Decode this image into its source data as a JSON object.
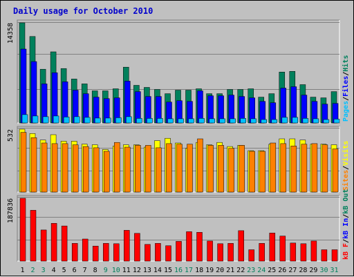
{
  "colors": {
    "background": "#c0c0c0",
    "plot_background": "#c0c0c0",
    "title": "#0000cc",
    "hits": "#00805c",
    "files": "#0000ff",
    "pages": "#00c0ff",
    "visits": "#ffff00",
    "sites": "#ff8000",
    "kbin": "#0000ff",
    "kbf": "#ff0000",
    "weekend_label": "#00805c",
    "weekday_label": "#000000"
  },
  "chart_data": {
    "type": "bar",
    "title": "Daily usage for October 2010",
    "categories": [
      "1",
      "2",
      "3",
      "4",
      "5",
      "6",
      "7",
      "8",
      "9",
      "10",
      "11",
      "12",
      "13",
      "14",
      "15",
      "16",
      "17",
      "18",
      "19",
      "20",
      "21",
      "22",
      "23",
      "24",
      "25",
      "26",
      "27",
      "28",
      "29",
      "30",
      "31"
    ],
    "weekend_days": [
      "2",
      "3",
      "9",
      "10",
      "16",
      "17",
      "23",
      "24",
      "30",
      "31"
    ],
    "grid": true,
    "panels": [
      {
        "name": "hits-files-pages",
        "ymax_label": "14358",
        "ylim": [
          0,
          14358
        ],
        "legend": [
          {
            "text": "Pages",
            "color_key": "pages"
          },
          {
            "text": "Files",
            "color_key": "files"
          },
          {
            "text": "Hits",
            "color_key": "hits"
          }
        ],
        "series": [
          {
            "name": "Hits",
            "color_key": "hits",
            "values": [
              14358,
              12400,
              7700,
              10200,
              7800,
              6300,
              5600,
              4600,
              4600,
              4900,
              8000,
              5400,
              5100,
              4800,
              4200,
              4700,
              4700,
              4900,
              4200,
              4200,
              4800,
              4800,
              4900,
              3700,
              4200,
              7300,
              7400,
              5500,
              3700,
              3600,
              4500
            ]
          },
          {
            "name": "Files",
            "color_key": "files",
            "values": [
              10600,
              8800,
              5600,
              7200,
              5900,
              4700,
              4200,
              3700,
              3500,
              3600,
              6000,
              4500,
              3800,
              3800,
              3000,
              3200,
              3100,
              4600,
              3900,
              3900,
              4000,
              3800,
              3600,
              3100,
              2900,
              5000,
              5200,
              4000,
              3100,
              2700,
              2800
            ]
          },
          {
            "name": "Pages",
            "color_key": "pages",
            "values": [
              1200,
              1000,
              900,
              1000,
              850,
              900,
              800,
              700,
              700,
              750,
              900,
              650,
              650,
              650,
              600,
              600,
              600,
              650,
              600,
              600,
              600,
              650,
              600,
              500,
              500,
              800,
              800,
              650,
              600,
              500,
              550
            ]
          }
        ]
      },
      {
        "name": "visits-sites",
        "ymax_label": "532",
        "ylim": [
          0,
          532
        ],
        "legend": [
          {
            "text": "Sites",
            "color_key": "sites"
          },
          {
            "text": "Visits",
            "color_key": "visits"
          }
        ],
        "series": [
          {
            "name": "Visits",
            "color_key": "visits",
            "values": [
              532,
              495,
              440,
              485,
              430,
              430,
              405,
              400,
              360,
              390,
              400,
              400,
              380,
              435,
              455,
              415,
              370,
              420,
              400,
              420,
              385,
              395,
              350,
              350,
              405,
              450,
              450,
              440,
              405,
              405,
              400
            ]
          },
          {
            "name": "Sites",
            "color_key": "sites",
            "values": [
              505,
              460,
              415,
              410,
              410,
              400,
              385,
              375,
              345,
              420,
              380,
              395,
              395,
              375,
              410,
              405,
              405,
              450,
              395,
              395,
              370,
              395,
              345,
              345,
              415,
              410,
              390,
              405,
              410,
              400,
              365
            ]
          }
        ]
      },
      {
        "name": "kbin-kbout-kbf",
        "ymax_label": "187836",
        "ylim": [
          0,
          187836
        ],
        "legend": [
          {
            "text": "kB F",
            "color_key": "kbf"
          },
          {
            "text": "kB In",
            "color_key": "kbin"
          },
          {
            "text": "kB Out",
            "color_key": "hits"
          }
        ],
        "series": [
          {
            "name": "kB F",
            "color_key": "kbf",
            "values": [
              187836,
              152000,
              93000,
              113000,
              105000,
              53000,
              66000,
              45000,
              53000,
              52000,
              92000,
              83000,
              50000,
              53000,
              46000,
              59000,
              88000,
              86000,
              60000,
              52000,
              53000,
              91000,
              34000,
              53000,
              84000,
              75000,
              54000,
              52000,
              60000,
              34000,
              34000
            ]
          }
        ]
      }
    ]
  }
}
